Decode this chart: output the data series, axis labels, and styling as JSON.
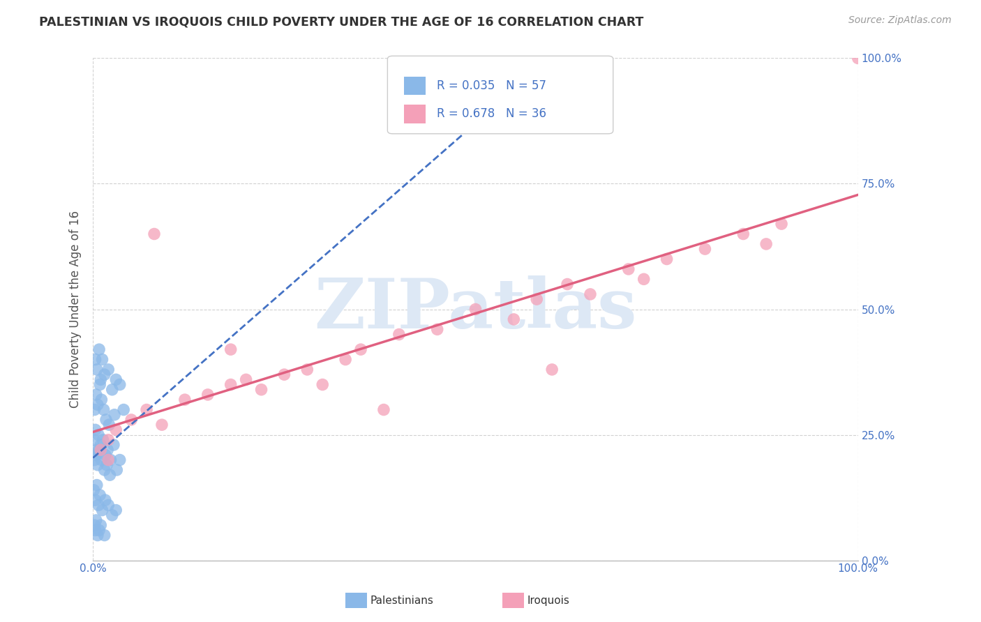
{
  "title": "PALESTINIAN VS IROQUOIS CHILD POVERTY UNDER THE AGE OF 16 CORRELATION CHART",
  "source": "Source: ZipAtlas.com",
  "ylabel": "Child Poverty Under the Age of 16",
  "legend_r1": "R = 0.035",
  "legend_n1": "N = 57",
  "legend_r2": "R = 0.678",
  "legend_n2": "N = 36",
  "watermark_text": "ZIPatlas",
  "blue_scatter_color": "#8ab8e8",
  "pink_scatter_color": "#f4a0b8",
  "blue_line_color": "#4472c4",
  "pink_line_color": "#e06080",
  "right_tick_color": "#4472c4",
  "title_color": "#333333",
  "source_color": "#999999",
  "ylabel_color": "#555555",
  "grid_color": "#cccccc",
  "background_color": "#ffffff",
  "watermark_color": "#dde8f5",
  "legend_border_color": "#cccccc",
  "bottom_label_color": "#333333",
  "palestinians_x": [
    0.3,
    0.5,
    0.8,
    1.0,
    1.2,
    1.5,
    2.0,
    2.5,
    3.0,
    3.5,
    0.2,
    0.4,
    0.6,
    0.9,
    1.1,
    1.4,
    1.7,
    2.1,
    2.8,
    4.0,
    0.1,
    0.3,
    0.5,
    0.7,
    1.0,
    1.3,
    1.6,
    1.9,
    2.3,
    2.7,
    0.2,
    0.4,
    0.6,
    0.8,
    1.1,
    1.5,
    1.8,
    2.2,
    3.1,
    3.5,
    0.1,
    0.3,
    0.5,
    0.7,
    0.9,
    1.2,
    1.6,
    2.0,
    2.5,
    3.0,
    0.2,
    0.3,
    0.4,
    0.6,
    0.8,
    1.0,
    1.5
  ],
  "palestinians_y": [
    40.0,
    38.0,
    42.0,
    36.0,
    40.0,
    37.0,
    38.0,
    34.0,
    36.0,
    35.0,
    30.0,
    33.0,
    31.0,
    35.0,
    32.0,
    30.0,
    28.0,
    27.0,
    29.0,
    30.0,
    24.0,
    26.0,
    22.0,
    25.0,
    23.0,
    24.0,
    21.0,
    22.0,
    20.0,
    23.0,
    20.0,
    21.0,
    19.0,
    22.0,
    20.0,
    18.0,
    19.0,
    17.0,
    18.0,
    20.0,
    14.0,
    12.0,
    15.0,
    11.0,
    13.0,
    10.0,
    12.0,
    11.0,
    9.0,
    10.0,
    7.0,
    6.0,
    8.0,
    5.0,
    6.0,
    7.0,
    5.0
  ],
  "iroquois_x": [
    1.0,
    2.0,
    3.0,
    5.0,
    7.0,
    9.0,
    12.0,
    15.0,
    18.0,
    20.0,
    22.0,
    25.0,
    28.0,
    30.0,
    33.0,
    35.0,
    40.0,
    45.0,
    50.0,
    55.0,
    58.0,
    62.0,
    65.0,
    70.0,
    72.0,
    75.0,
    80.0,
    85.0,
    88.0,
    90.0,
    2.0,
    8.0,
    18.0,
    38.0,
    60.0,
    100.0
  ],
  "iroquois_y": [
    22.0,
    24.0,
    26.0,
    28.0,
    30.0,
    27.0,
    32.0,
    33.0,
    35.0,
    36.0,
    34.0,
    37.0,
    38.0,
    35.0,
    40.0,
    42.0,
    45.0,
    46.0,
    50.0,
    48.0,
    52.0,
    55.0,
    53.0,
    58.0,
    56.0,
    60.0,
    62.0,
    65.0,
    63.0,
    67.0,
    20.0,
    65.0,
    42.0,
    30.0,
    38.0,
    100.0
  ],
  "xlim": [
    0,
    100
  ],
  "ylim": [
    0,
    100
  ],
  "figsize": [
    14.06,
    8.92
  ],
  "dpi": 100
}
